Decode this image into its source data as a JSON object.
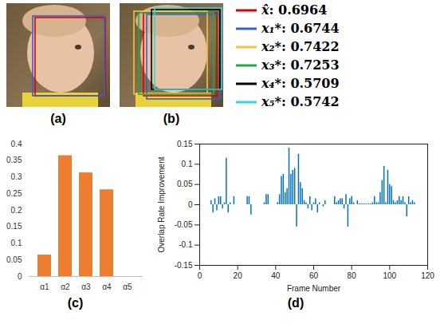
{
  "images": [
    {
      "label": "(a)"
    },
    {
      "label": "(b)"
    }
  ],
  "boxes": [
    {
      "name": "x̂",
      "value": 0.6964,
      "color": "#e00000"
    },
    {
      "name": "x₁*",
      "value": 0.6744,
      "color": "#3a5fcd"
    },
    {
      "name": "x₂*",
      "value": 0.7422,
      "color": "#f5c242"
    },
    {
      "name": "x₃*",
      "value": 0.7253,
      "color": "#22a84a"
    },
    {
      "name": "x₄*",
      "value": 0.5709,
      "color": "#000000"
    },
    {
      "name": "x₅*",
      "value": 0.5742,
      "color": "#33d6dd"
    }
  ],
  "chart_data": [
    {
      "type": "bar",
      "title": "(c)",
      "categories": [
        "α1",
        "α2",
        "α3",
        "α4",
        "α5"
      ],
      "values": [
        0.065,
        0.365,
        0.313,
        0.262,
        0
      ],
      "color": "#ed7d31",
      "ylim": [
        0,
        0.4
      ],
      "yticks": [
        0,
        0.05,
        0.1,
        0.15,
        0.2,
        0.25,
        0.3,
        0.35,
        0.4
      ],
      "grid": false
    },
    {
      "type": "stem",
      "title": "(d)",
      "x_label": "Frame Number",
      "y_label": "Overlap Rate Improvement",
      "x": [
        6,
        7,
        8,
        9,
        10,
        11,
        12,
        13,
        14,
        15,
        16,
        17,
        18,
        19,
        20,
        21,
        22,
        23,
        24,
        25,
        26,
        27,
        28,
        29,
        30,
        31,
        32,
        33,
        34,
        35,
        36,
        37,
        38,
        39,
        40,
        41,
        42,
        43,
        44,
        45,
        46,
        47,
        48,
        49,
        50,
        51,
        52,
        53,
        54,
        55,
        56,
        57,
        58,
        59,
        60,
        61,
        62,
        63,
        64,
        65,
        66,
        67,
        68,
        69,
        70,
        71,
        72,
        73,
        74,
        75,
        76,
        77,
        78,
        79,
        80,
        81,
        82,
        83,
        84,
        85,
        86,
        87,
        88,
        89,
        90,
        91,
        92,
        93,
        94,
        95,
        96,
        97,
        98,
        99,
        100,
        101,
        102,
        103,
        104,
        105,
        106,
        107,
        108,
        109,
        110,
        111,
        112,
        113
      ],
      "values": [
        0.01,
        -0.02,
        0.015,
        -0.015,
        0.02,
        0.02,
        -0.01,
        0.005,
        0.115,
        -0.02,
        0.005,
        0,
        0.02,
        0,
        0,
        0,
        0,
        0,
        0,
        0.02,
        0.02,
        -0.025,
        0,
        0,
        0,
        0,
        0,
        0,
        0.005,
        0.025,
        0.025,
        0,
        0,
        0,
        0,
        0.005,
        0.025,
        0.07,
        0.075,
        0.03,
        0.04,
        0.14,
        0.075,
        0.085,
        0.09,
        -0.055,
        0.125,
        0.055,
        0.04,
        0.01,
        0.005,
        -0.01,
        0.02,
        -0.015,
        0.005,
        0.015,
        -0.02,
        0.005,
        0,
        -0.005,
        0.01,
        0,
        0,
        0,
        0,
        0.02,
        0.005,
        0.01,
        0.015,
        0.015,
        -0.01,
        0.025,
        -0.055,
        0.015,
        0.02,
        0.005,
        0,
        0.01,
        0.002,
        0.002,
        0.002,
        0.002,
        0.002,
        0.002,
        0.002,
        0.005,
        0.02,
        0.005,
        0.005,
        0.03,
        0.06,
        0.095,
        0.005,
        0.085,
        0.05,
        0.045,
        0.01,
        0.005,
        0.01,
        0.02,
        0.01,
        0.02,
        0.005,
        -0.03,
        0.02,
        0.005,
        0.01,
        0.005
      ],
      "color": "#0072bd",
      "xlim": [
        0,
        120
      ],
      "xticks": [
        0,
        20,
        40,
        60,
        80,
        100,
        120
      ],
      "ylim": [
        -0.15,
        0.15
      ],
      "yticks": [
        -0.15,
        -0.1,
        -0.05,
        0,
        0.05,
        0.1,
        0.15
      ],
      "grid": false
    }
  ]
}
